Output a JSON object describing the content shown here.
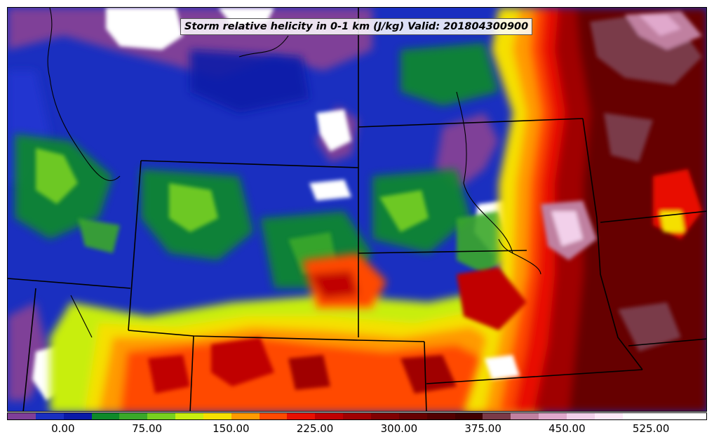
{
  "title": "Storm relative helicity in 0-1 km (J/kg) Valid: 201804300900",
  "colorbar": {
    "min": -50,
    "max": 575,
    "step": 25,
    "tick_labels": [
      "0.00",
      "75.00",
      "150.00",
      "225.00",
      "300.00",
      "375.00",
      "450.00",
      "525.00"
    ],
    "tick_values": [
      0,
      75,
      150,
      225,
      300,
      375,
      450,
      525
    ],
    "colors": [
      "#7f3f98",
      "#1a2fc0",
      "#0a1aa8",
      "#0f8a2a",
      "#3aa82a",
      "#78d020",
      "#c8ee10",
      "#f5e000",
      "#ff9a00",
      "#ff4a00",
      "#e81000",
      "#c00000",
      "#a00000",
      "#800000",
      "#660000",
      "#520000",
      "#400000",
      "#7a3a48",
      "#c080a0",
      "#e0a8cc",
      "#f2d0ea",
      "#ffe8f8",
      "#ffffff",
      "#ffffff",
      "#ffffff"
    ]
  }
}
